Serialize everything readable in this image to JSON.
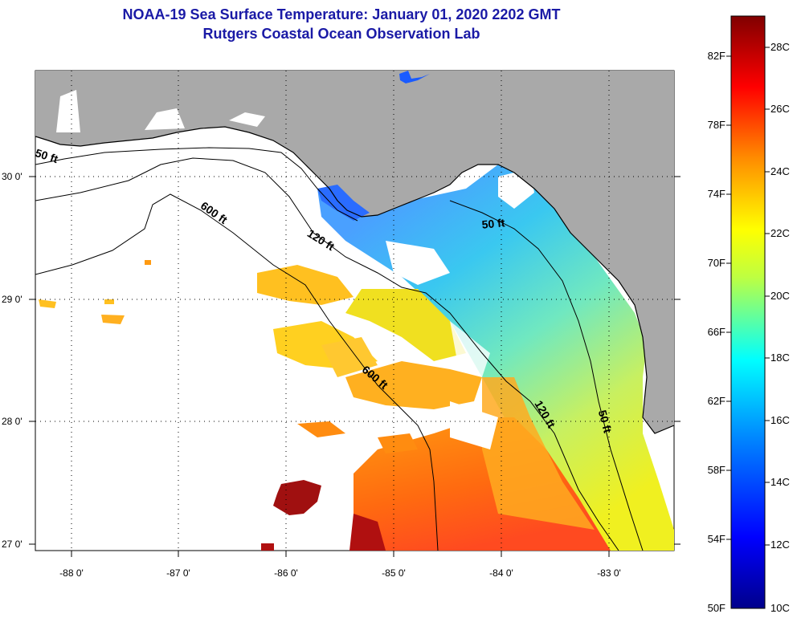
{
  "header": {
    "title": "NOAA-19 Sea Surface Temperature:  January 01, 2020 2202 GMT",
    "subtitle": "Rutgers Coastal Ocean Observation Lab"
  },
  "map": {
    "lat_ticks": [
      "30 0'",
      "29 0'",
      "28 0'",
      "27 0'"
    ],
    "lon_ticks": [
      "-88 0'",
      "-87 0'",
      "-86 0'",
      "-85 0'",
      "-84 0'",
      "-83 0'"
    ],
    "depth_labels": [
      {
        "id": "50a",
        "text": "50 ft"
      },
      {
        "id": "600a",
        "text": "600 ft"
      },
      {
        "id": "120a",
        "text": "120 ft"
      },
      {
        "id": "50b",
        "text": "50 ft"
      },
      {
        "id": "600b",
        "text": "600 ft"
      },
      {
        "id": "120b",
        "text": "120 ft"
      },
      {
        "id": "50c",
        "text": "50 ft"
      }
    ],
    "colors": {
      "land": "#a9a9a9",
      "cloud": "#ffffff",
      "contour": "#000000"
    }
  },
  "colorbar": {
    "f_labels": [
      "82F",
      "78F",
      "74F",
      "70F",
      "66F",
      "62F",
      "58F",
      "54F",
      "50F"
    ],
    "c_labels": [
      "28C",
      "26C",
      "24C",
      "22C",
      "20C",
      "18C",
      "16C",
      "14C",
      "12C",
      "10C"
    ],
    "range_c": [
      10,
      29
    ],
    "stops": [
      "#800000",
      "#ff0000",
      "#ff8c00",
      "#ffff00",
      "#00ffff",
      "#0080ff",
      "#0000ff",
      "#00008b"
    ]
  }
}
